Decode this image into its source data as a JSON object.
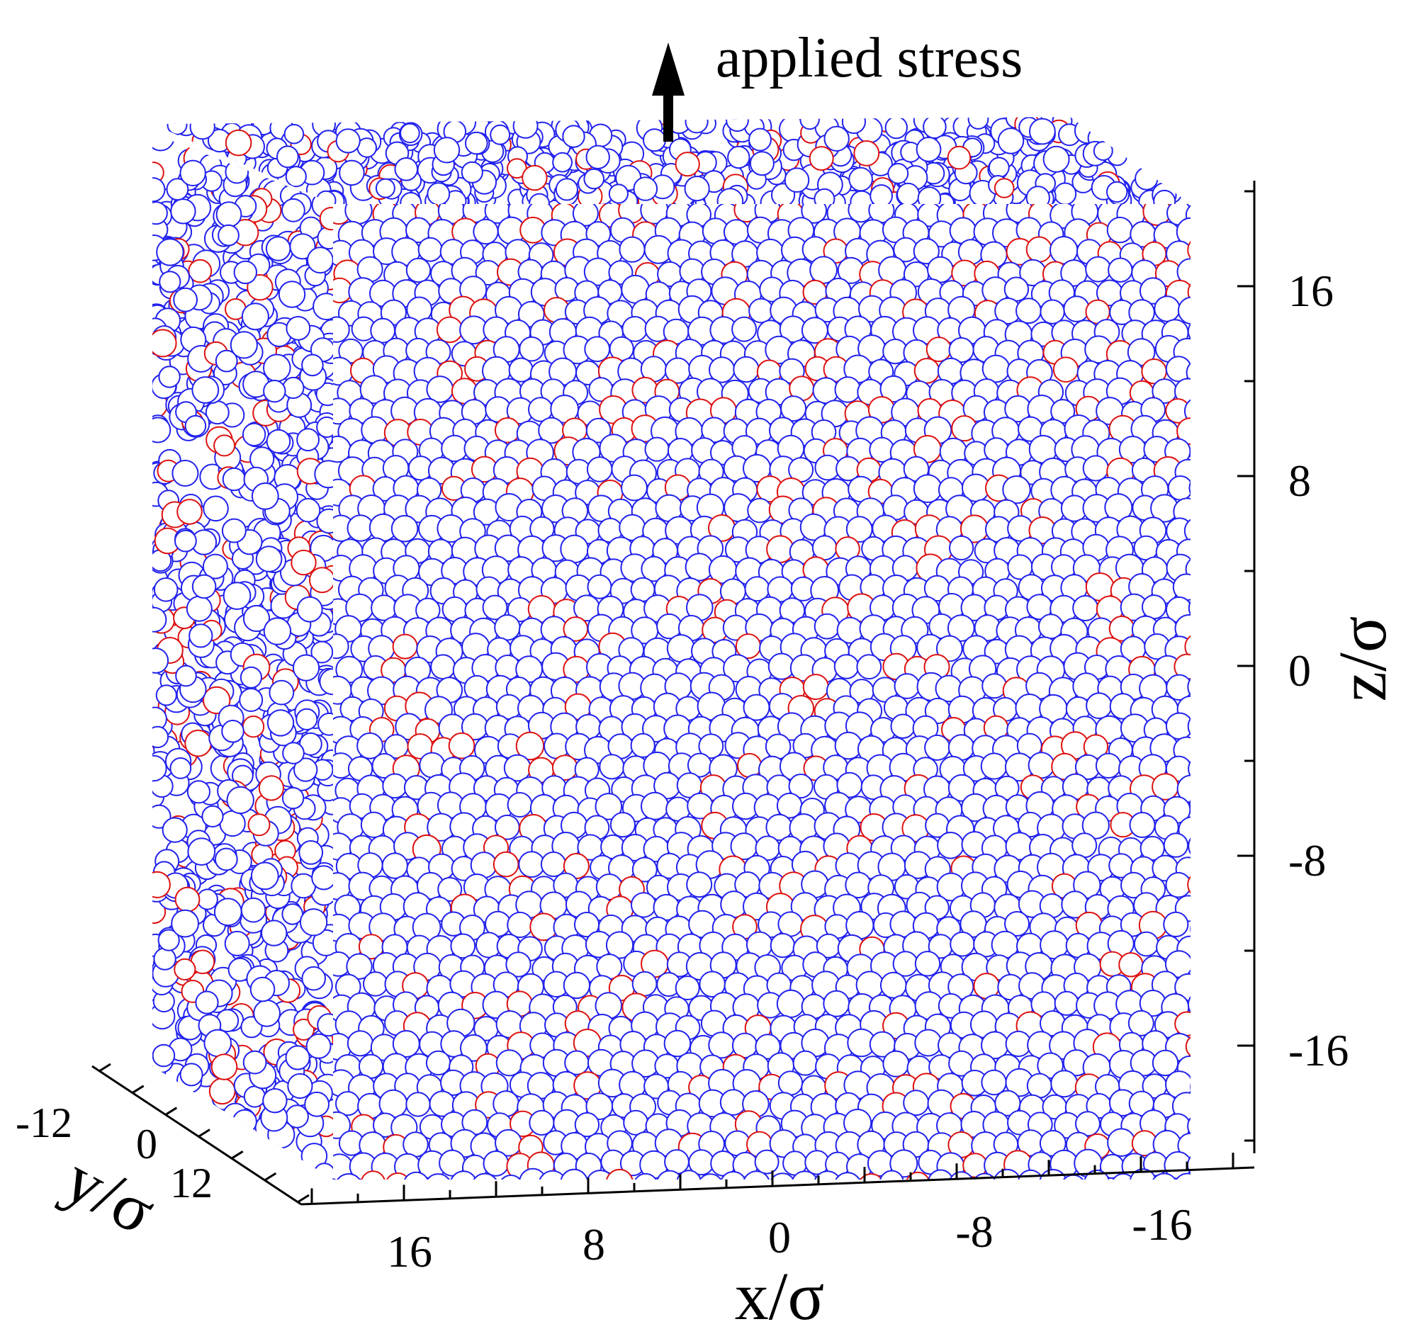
{
  "annotation": {
    "text": "applied stress"
  },
  "axes": {
    "x": {
      "label": "x/σ",
      "ticks": [
        "16",
        "8",
        "0",
        "-8",
        "-16"
      ]
    },
    "y": {
      "label": "y/σ",
      "ticks": [
        "-12",
        "0",
        "12"
      ]
    },
    "z": {
      "label": "z/σ",
      "ticks": [
        "16",
        "8",
        "0",
        "-8",
        "-16"
      ]
    }
  },
  "colors": {
    "majority_particle": "#2222ee",
    "minority_particle": "#dd1111",
    "background": "#ffffff",
    "axis": "#000000"
  }
}
